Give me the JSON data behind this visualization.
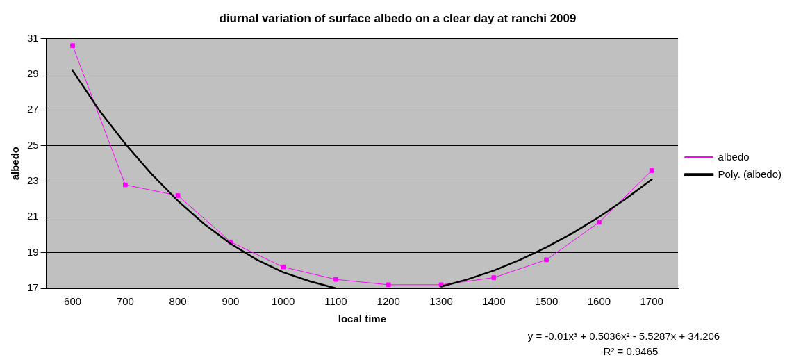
{
  "chart_data": {
    "type": "line",
    "title": "diurnal variation of surface albedo on a clear day at ranchi 2009",
    "xlabel": "local time",
    "ylabel": "albedo",
    "x": [
      600,
      700,
      800,
      900,
      1000,
      1100,
      1200,
      1300,
      1400,
      1500,
      1600,
      1700
    ],
    "xlim": [
      550,
      1750
    ],
    "xticks": [
      600,
      700,
      800,
      900,
      1000,
      1100,
      1200,
      1300,
      1400,
      1500,
      1600,
      1700
    ],
    "ylim": [
      17,
      31
    ],
    "yticks": [
      17,
      19,
      21,
      23,
      25,
      27,
      29,
      31
    ],
    "series": [
      {
        "name": "albedo",
        "color": "#ff00ff",
        "marker": "square",
        "values": [
          30.6,
          22.8,
          22.2,
          19.6,
          18.2,
          17.5,
          17.2,
          17.2,
          17.6,
          18.6,
          20.7,
          23.6
        ]
      },
      {
        "name": "Poly. (albedo)",
        "type": "line",
        "color": "#000000",
        "marker": "none",
        "x": [
          600,
          650,
          700,
          750,
          800,
          850,
          900,
          950,
          1000,
          1050,
          1100,
          1150,
          1200,
          1250,
          1300,
          1350,
          1400,
          1450,
          1500,
          1550,
          1600,
          1650,
          1700
        ],
        "values": [
          29.2,
          27.0,
          25.1,
          23.4,
          21.9,
          20.6,
          19.5,
          18.6,
          17.9,
          17.4,
          17.0,
          null,
          null,
          null,
          17.1,
          17.5,
          18.0,
          18.6,
          19.3,
          20.1,
          21.0,
          22.0,
          23.1
        ]
      }
    ],
    "grid": "y",
    "legend": "right",
    "annotations": [
      "y = -0.01x³ + 0.5036x² - 5.5287x + 34.206",
      "R² = 0.9465"
    ]
  }
}
